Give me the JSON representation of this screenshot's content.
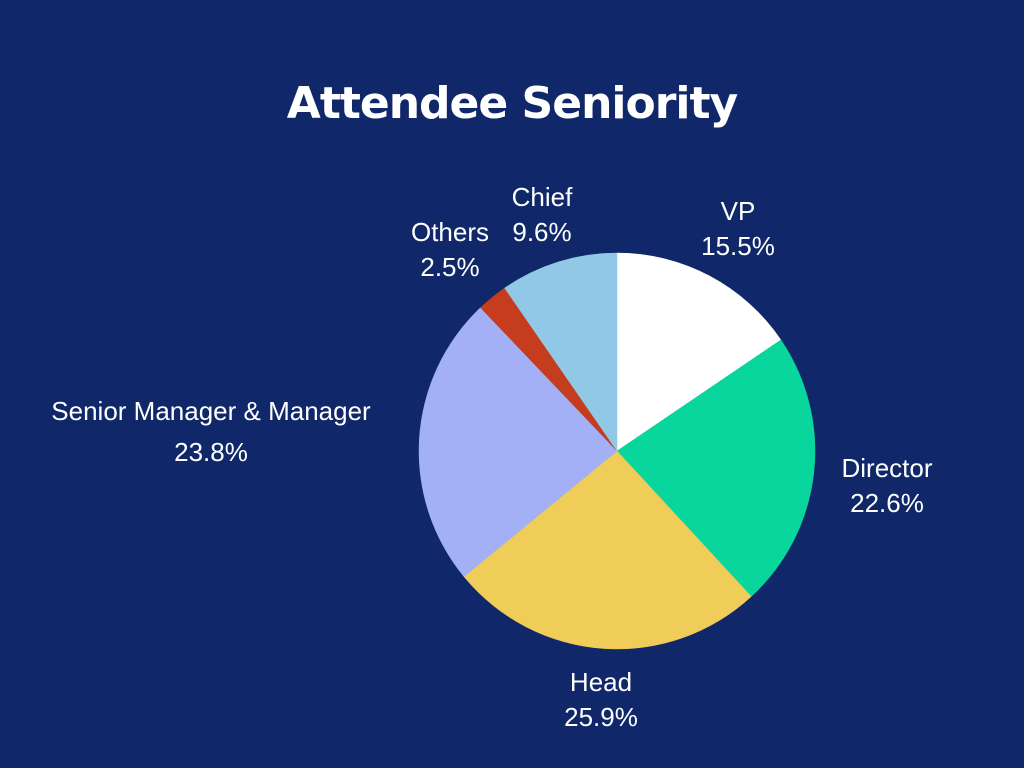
{
  "chart_data": {
    "type": "pie",
    "title": "Attendee Seniority",
    "slices": [
      {
        "label": "VP",
        "value": 15.5,
        "display": "15.5%",
        "color": "#ffffff"
      },
      {
        "label": "Director",
        "value": 22.6,
        "display": "22.6%",
        "color": "#08d69d"
      },
      {
        "label": "Head",
        "value": 25.9,
        "display": "25.9%",
        "color": "#efcd58"
      },
      {
        "label": "Senior Manager & Manager",
        "value": 23.8,
        "display": "23.8%",
        "color": "#a4b0f5"
      },
      {
        "label": "Others",
        "value": 2.5,
        "display": "2.5%",
        "color": "#c53d1e"
      },
      {
        "label": "Chief",
        "value": 9.6,
        "display": "9.6%",
        "color": "#90c8e6"
      }
    ],
    "start": "12 o'clock",
    "direction": "clockwise",
    "legend": "none (labels beside slices)"
  },
  "colors": {
    "background": "#10286a",
    "text": "#ffffff"
  }
}
